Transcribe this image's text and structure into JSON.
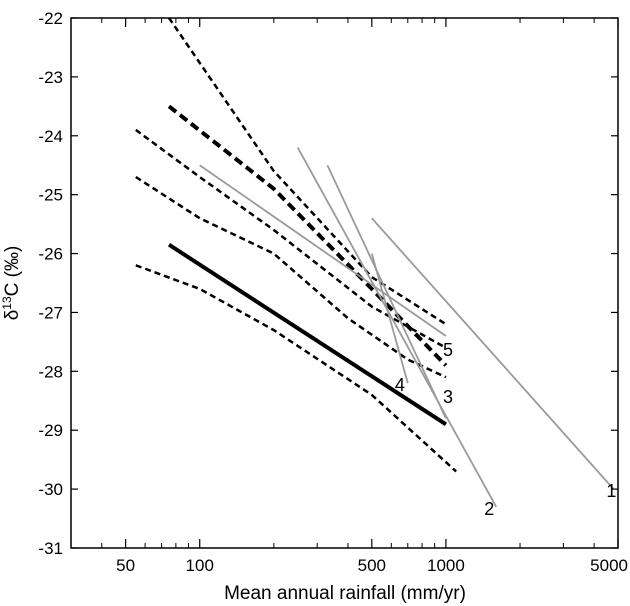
{
  "chart_data": {
    "type": "line",
    "title": "",
    "xlabel": "Mean annual rainfall (mm/yr)",
    "ylabel_main": "δ",
    "ylabel_sup": "13",
    "ylabel_rest": "C (‰)",
    "x_scale": "log",
    "xlim": [
      30,
      5000
    ],
    "ylim": [
      -31,
      -22
    ],
    "x_ticks": [
      50,
      100,
      500,
      1000,
      5000
    ],
    "x_tick_labels": [
      "50",
      "100",
      "500",
      "1000",
      "5000"
    ],
    "x_minor_ticks": [
      40,
      60,
      70,
      80,
      90,
      200,
      300,
      400,
      600,
      700,
      800,
      900,
      2000,
      3000,
      4000
    ],
    "y_ticks": [
      -31,
      -30,
      -29,
      -28,
      -27,
      -26,
      -25,
      -24,
      -23,
      -22
    ],
    "y_tick_labels": [
      "-31",
      "-30",
      "-29",
      "-28",
      "-27",
      "-26",
      "-25",
      "-24",
      "-23",
      "-22"
    ],
    "grid": false,
    "colors": {
      "black": "#000000",
      "gray": "#9a9a9a"
    },
    "series": [
      {
        "style": "dashed",
        "color": "#000000",
        "width": 2.5,
        "x": [
          75,
          200,
          500,
          1000
        ],
        "y": [
          -22.0,
          -24.6,
          -26.4,
          -27.2
        ]
      },
      {
        "style": "dashed",
        "color": "#000000",
        "width": 4,
        "x": [
          75,
          200,
          500,
          1000
        ],
        "y": [
          -23.5,
          -24.9,
          -26.6,
          -27.9
        ]
      },
      {
        "style": "dashed",
        "color": "#000000",
        "width": 2.5,
        "x": [
          55,
          100,
          200,
          500,
          1000
        ],
        "y": [
          -23.9,
          -24.7,
          -25.6,
          -26.9,
          -27.6
        ]
      },
      {
        "style": "dashed",
        "color": "#000000",
        "width": 2.5,
        "x": [
          55,
          100,
          200,
          400,
          700,
          1000
        ],
        "y": [
          -24.7,
          -25.4,
          -26.0,
          -27.1,
          -27.8,
          -28.1
        ]
      },
      {
        "style": "dashed",
        "color": "#000000",
        "width": 2.5,
        "x": [
          55,
          100,
          200,
          500,
          1100
        ],
        "y": [
          -26.2,
          -26.6,
          -27.3,
          -28.4,
          -29.7
        ]
      },
      {
        "style": "solid",
        "color": "#000000",
        "width": 4,
        "x": [
          75,
          1000
        ],
        "y": [
          -25.85,
          -28.9
        ]
      },
      {
        "style": "solid",
        "color": "#9a9a9a",
        "width": 1.8,
        "label": "1",
        "x": [
          500,
          4800
        ],
        "y": [
          -25.4,
          -30.0
        ]
      },
      {
        "style": "solid",
        "color": "#9a9a9a",
        "width": 1.8,
        "label": "2",
        "x": [
          250,
          1600
        ],
        "y": [
          -24.2,
          -30.3
        ]
      },
      {
        "style": "solid",
        "color": "#9a9a9a",
        "width": 1.8,
        "label": "3",
        "x": [
          330,
          1000
        ],
        "y": [
          -24.5,
          -28.8
        ]
      },
      {
        "style": "solid",
        "color": "#9a9a9a",
        "width": 1.8,
        "label": "4",
        "x": [
          500,
          700
        ],
        "y": [
          -26.0,
          -28.2
        ]
      },
      {
        "style": "solid",
        "color": "#9a9a9a",
        "width": 1.8,
        "label": "5",
        "x": [
          100,
          1000
        ],
        "y": [
          -24.5,
          -27.4
        ]
      }
    ],
    "line_labels": [
      {
        "text": "1",
        "x": 4700,
        "y": -30.0
      },
      {
        "text": "2",
        "x": 1500,
        "y": -30.3
      },
      {
        "text": "3",
        "x": 1020,
        "y": -28.4
      },
      {
        "text": "4",
        "x": 650,
        "y": -28.2
      },
      {
        "text": "5",
        "x": 1020,
        "y": -27.6
      }
    ]
  }
}
